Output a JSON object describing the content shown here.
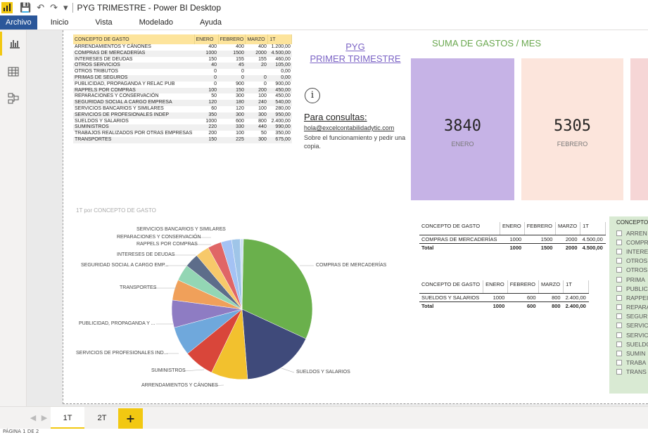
{
  "app": {
    "title": "PYG TRIMESTRE - Power BI Desktop"
  },
  "ribbon": {
    "tabs": [
      "Archivo",
      "Inicio",
      "Vista",
      "Modelado",
      "Ayuda"
    ]
  },
  "main_table": {
    "headers": [
      "CONCEPTO DE GASTO",
      "ENERO",
      "FEBRERO",
      "MARZO",
      "1T"
    ],
    "rows": [
      [
        "ARRENDAMIENTOS Y CÁNONES",
        "400",
        "400",
        "400",
        "1.200,00"
      ],
      [
        "COMPRAS DE MERCADERÍAS",
        "1000",
        "1500",
        "2000",
        "4.500,00"
      ],
      [
        "INTERESES DE DEUDAS",
        "150",
        "155",
        "155",
        "460,00"
      ],
      [
        "OTROS SERVICIOS",
        "40",
        "45",
        "20",
        "105,00"
      ],
      [
        "OTROS TRIBUTOS",
        "0",
        "0",
        "",
        "0,00"
      ],
      [
        "PRIMAS DE SEGUROS",
        "0",
        "0",
        "0",
        "0,00"
      ],
      [
        "PUBLICIDAD, PROPAGANDA Y RELAC PUB",
        "0",
        "900",
        "0",
        "900,00"
      ],
      [
        "RAPPELS POR COMPRAS",
        "100",
        "150",
        "200",
        "450,00"
      ],
      [
        "REPARACIONES Y CONSERVACIÓN",
        "50",
        "300",
        "100",
        "450,00"
      ],
      [
        "SEGURIDAD SOCIAL A CARGO EMPRESA",
        "120",
        "180",
        "240",
        "540,00"
      ],
      [
        "SERVICIOS BANCARIOS Y SIMILARES",
        "60",
        "120",
        "100",
        "280,00"
      ],
      [
        "SERVICIOS DE PROFESIONALES INDEP",
        "350",
        "300",
        "300",
        "950,00"
      ],
      [
        "SUELDOS Y SALARIOS",
        "1000",
        "600",
        "800",
        "2.400,00"
      ],
      [
        "SUMINISTROS",
        "220",
        "330",
        "440",
        "990,00"
      ],
      [
        "TRABAJOS REALIZADOS POR OTRAS EMPRESAS",
        "200",
        "100",
        "50",
        "350,00"
      ],
      [
        "TRANSPORTES",
        "150",
        "225",
        "300",
        "675,00"
      ]
    ]
  },
  "header": {
    "pyg_line1": "PYG",
    "pyg_line2": "PRIMER TRIMESTRE",
    "info_icon": "i",
    "consultas": "Para consultas:",
    "email": "hola@excelcontabilidadytic.com",
    "note": "Sobre el funcionamiento y pedir una copia."
  },
  "cards": {
    "title": "SUMA DE GASTOS / MES",
    "items": [
      {
        "value": "3840",
        "label": "ENERO",
        "color": "#c6b3e6"
      },
      {
        "value": "5305",
        "label": "FEBRERO",
        "color": "#fce5dc"
      }
    ]
  },
  "pie": {
    "title": "1T por CONCEPTO DE GASTO",
    "labels": [
      "SERVICIOS BANCARIOS Y SIMILARES",
      "REPARACIONES Y CONSERVACIÓN",
      "RAPPELS POR COMPRAS",
      "INTERESES DE DEUDAS",
      "SEGURIDAD SOCIAL A CARGO EMP...",
      "TRANSPORTES",
      "PUBLICIDAD, PROPAGANDA Y ...",
      "SERVICIOS DE PROFESIONALES IND...",
      "SUMINISTROS",
      "ARRENDAMIENTOS Y CÁNONES",
      "COMPRAS DE MERCADERÍAS",
      "SUELDOS Y SALARIOS"
    ]
  },
  "mini1": {
    "headers": [
      "CONCEPTO DE GASTO",
      "ENERO",
      "FEBRERO",
      "MARZO",
      "1T"
    ],
    "row": [
      "COMPRAS DE MERCADERÍAS",
      "1000",
      "1500",
      "2000",
      "4.500,00"
    ],
    "total": [
      "Total",
      "1000",
      "1500",
      "2000",
      "4.500,00"
    ]
  },
  "mini2": {
    "headers": [
      "CONCEPTO DE GASTO",
      "ENERO",
      "FEBRERO",
      "MARZO",
      "1T"
    ],
    "row": [
      "SUELDOS Y SALARIOS",
      "1000",
      "600",
      "800",
      "2.400,00"
    ],
    "total": [
      "Total",
      "1000",
      "600",
      "800",
      "2.400,00"
    ]
  },
  "slicer": {
    "title": "CONCEPTO",
    "items": [
      "ARREN",
      "COMPR",
      "INTERE",
      "OTROS",
      "OTROS",
      "PRIMA",
      "PUBLIC",
      "RAPPEI",
      "REPARA",
      "SEGUR",
      "SERVIC",
      "SERVIC",
      "SUELDO",
      "SUMIN",
      "TRABA",
      "TRANS"
    ]
  },
  "pages": {
    "tabs": [
      "1T",
      "2T"
    ],
    "add": "+"
  },
  "status": {
    "text": "PÁGINA 1 DE 2"
  },
  "chart_data": {
    "type": "pie",
    "title": "1T por CONCEPTO DE GASTO",
    "categories": [
      "COMPRAS DE MERCADERÍAS",
      "SUELDOS Y SALARIOS",
      "ARRENDAMIENTOS Y CÁNONES",
      "SUMINISTROS",
      "SERVICIOS DE PROFESIONALES INDEP",
      "PUBLICIDAD, PROPAGANDA Y RELAC PUB",
      "TRANSPORTES",
      "SEGURIDAD SOCIAL A CARGO EMPRESA",
      "INTERESES DE DEUDAS",
      "RAPPELS POR COMPRAS",
      "REPARACIONES Y CONSERVACIÓN",
      "TRABAJOS REALIZADOS POR OTRAS EMPRESAS",
      "SERVICIOS BANCARIOS Y SIMILARES",
      "OTROS SERVICIOS"
    ],
    "values": [
      4500,
      2400,
      1200,
      990,
      950,
      900,
      675,
      540,
      460,
      450,
      450,
      350,
      280,
      105
    ],
    "colors": [
      "#6ab04c",
      "#3f4a7a",
      "#f2c12e",
      "#d9463a",
      "#6fa8dc",
      "#8e7cc3",
      "#f0a05a",
      "#93d6b4",
      "#5d6d8a",
      "#f7c96a",
      "#e06666",
      "#a4c2f4",
      "#9fc5e8",
      "#cfe2f3"
    ]
  }
}
